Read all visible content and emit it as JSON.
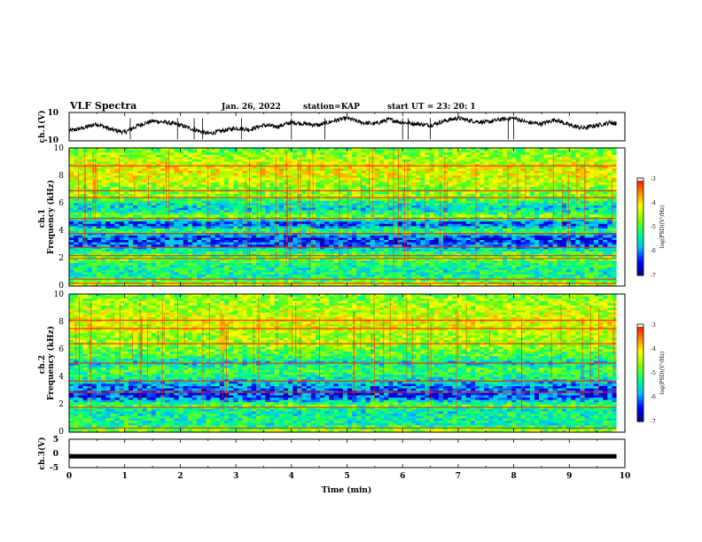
{
  "header": {
    "title": "VLF Spectra",
    "date": "Jan. 26, 2022",
    "station": "station=KAP",
    "start": "start UT =  23: 20: 1"
  },
  "chart_data": [
    {
      "type": "line",
      "name": "ch1-waveform",
      "ylabel": "ch.1(V)",
      "ylim": [
        -10,
        10
      ],
      "yticks": [
        "10",
        "-10"
      ],
      "xlim": [
        0,
        10
      ],
      "trace": {
        "x": [
          0,
          0.25,
          0.5,
          0.75,
          1.0,
          1.25,
          1.5,
          1.75,
          2.0,
          2.25,
          2.5,
          2.75,
          3.0,
          3.25,
          3.5,
          3.75,
          4.0,
          4.25,
          4.5,
          4.75,
          5.0,
          5.25,
          5.5,
          5.75,
          6.0,
          6.25,
          6.5,
          6.75,
          7.0,
          7.25,
          7.5,
          7.75,
          8.0,
          8.25,
          8.5,
          8.75,
          9.0,
          9.25,
          9.5,
          9.75,
          9.85
        ],
        "y": [
          -3,
          -1,
          2,
          -2,
          -4,
          1,
          4,
          3,
          1,
          -2,
          -5,
          -3,
          -1,
          -2,
          1,
          0,
          3,
          2,
          1,
          4,
          6,
          3,
          2,
          5,
          3,
          2,
          1,
          4,
          6,
          4,
          3,
          5,
          6,
          3,
          2,
          5,
          1,
          -1,
          1,
          3,
          2
        ]
      }
    },
    {
      "type": "heatmap",
      "name": "ch1-spectrogram",
      "ylabel": "ch.1\nFrequency (kHz)",
      "xlim": [
        0,
        10
      ],
      "ylim": [
        0,
        10
      ],
      "yticks": [
        "10",
        "8",
        "6",
        "4",
        "2",
        "0"
      ],
      "colorbar": {
        "label": "log(PSD)(V²/Hz)",
        "ticks": [
          "-3",
          "-4",
          "-5",
          "-6",
          "-7"
        ],
        "range": [
          -7,
          -3
        ]
      },
      "profile_khz": [
        0.0,
        0.5,
        1.0,
        1.5,
        2.0,
        2.5,
        3.0,
        3.5,
        4.0,
        4.5,
        5.0,
        5.5,
        6.0,
        6.5,
        7.0,
        7.5,
        8.0,
        8.5,
        9.0,
        9.5,
        10.0
      ],
      "profile_log_psd": [
        -4.2,
        -5.2,
        -5.4,
        -5.3,
        -4.8,
        -5.2,
        -6.2,
        -6.3,
        -5.0,
        -6.4,
        -4.6,
        -5.6,
        -5.4,
        -4.6,
        -4.8,
        -4.4,
        -4.3,
        -4.2,
        -4.4,
        -4.6,
        -4.9
      ],
      "lines_khz": [
        0.2,
        0.5,
        2.0,
        2.2,
        2.8,
        3.8,
        4.9,
        6.4,
        6.9,
        8.7
      ]
    },
    {
      "type": "heatmap",
      "name": "ch2-spectrogram",
      "ylabel": "ch.2\nFrequency (kHz)",
      "xlim": [
        0,
        10
      ],
      "ylim": [
        0,
        10
      ],
      "yticks": [
        "10",
        "8",
        "6",
        "4",
        "2",
        "0"
      ],
      "colorbar": {
        "label": "log(PSD)(V²/Hz)",
        "ticks": [
          "-3",
          "-4",
          "-5",
          "-6",
          "-7"
        ],
        "range": [
          -7,
          -3
        ]
      },
      "profile_khz": [
        0.0,
        0.5,
        1.0,
        1.5,
        2.0,
        2.5,
        3.0,
        3.5,
        4.0,
        4.5,
        5.0,
        5.5,
        6.0,
        6.5,
        7.0,
        7.5,
        8.0,
        8.5,
        9.0,
        9.5,
        10.0
      ],
      "profile_log_psd": [
        -4.4,
        -5.4,
        -5.3,
        -5.5,
        -4.9,
        -6.3,
        -6.2,
        -5.8,
        -5.3,
        -5.0,
        -5.6,
        -5.0,
        -4.8,
        -4.5,
        -4.6,
        -4.3,
        -4.2,
        -4.4,
        -4.5,
        -4.6,
        -4.8
      ],
      "lines_khz": [
        0.3,
        1.8,
        2.9,
        3.7,
        5.0,
        6.4,
        7.5,
        8.1
      ]
    },
    {
      "type": "line",
      "name": "ch3-waveform",
      "ylabel": "ch.3(V)",
      "ylim": [
        -5,
        5
      ],
      "yticks": [
        "5",
        "0",
        "-5"
      ],
      "xlim": [
        0,
        10
      ],
      "xlabel": "Time (min)",
      "xticks": [
        "0",
        "1",
        "2",
        "3",
        "4",
        "5",
        "6",
        "7",
        "8",
        "9",
        "10"
      ],
      "trace": {
        "x": [
          0,
          9.85
        ],
        "y": [
          -1,
          -1
        ]
      }
    }
  ],
  "colors": {
    "scale": [
      "#000080",
      "#0000ff",
      "#00c0ff",
      "#00ff80",
      "#80ff00",
      "#ffff00",
      "#ff8000",
      "#ff0000",
      "#ffffff"
    ]
  }
}
